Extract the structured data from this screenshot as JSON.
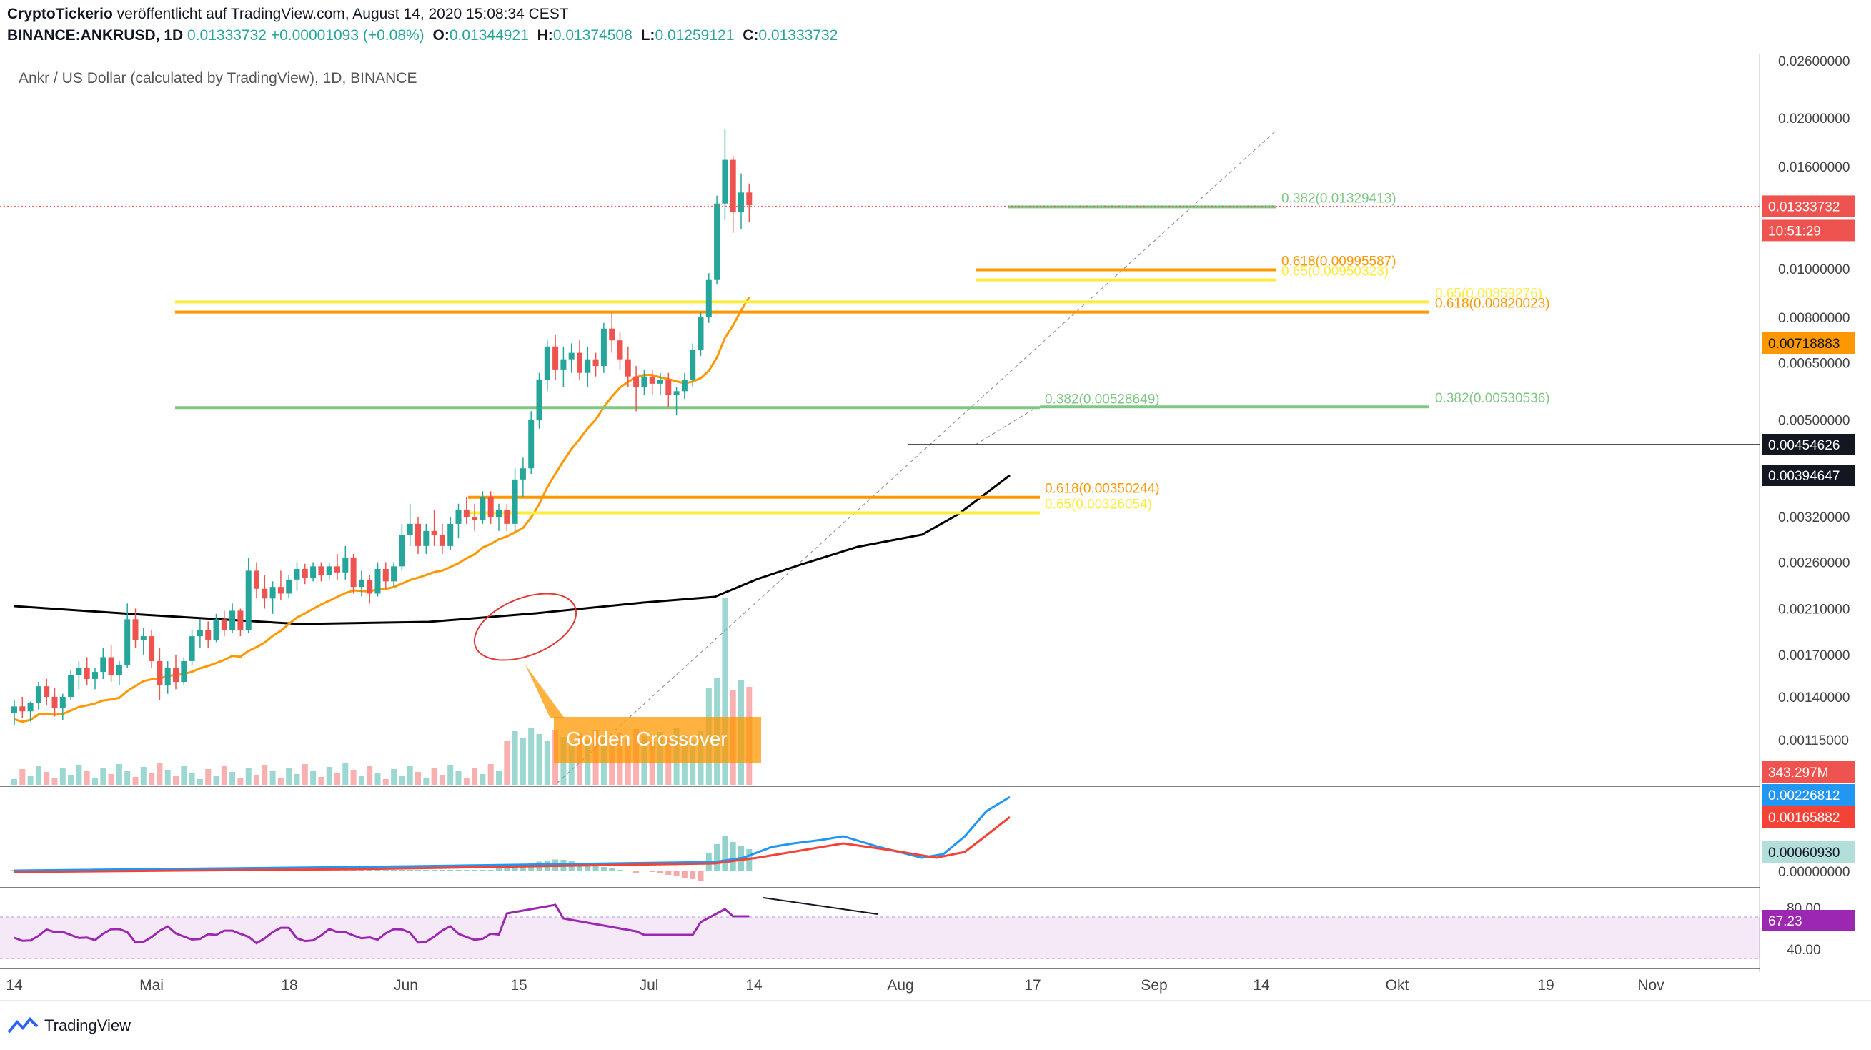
{
  "header": {
    "author": "CryptoTickerio",
    "published": "veröffentlicht auf TradingView.com, August 14, 2020 15:08:34 CEST",
    "symbol": "BINANCE:ANKRUSD, 1D",
    "last": "0.01333732",
    "change": "+0.00001093 (+0.08%)",
    "o_label": "O:",
    "o": "0.01344921",
    "h_label": "H:",
    "h": "0.01374508",
    "l_label": "L:",
    "l": "0.01259121",
    "c_label": "C:",
    "c": "0.01333732"
  },
  "footer": {
    "brand": "TradingView",
    "logo_icon": "tradingview-logo-icon"
  },
  "chart_data": {
    "type": "candlestick",
    "title": "Ankr / US Dollar (calculated by TradingView), 1D, BINANCE",
    "x_ticks": [
      "14",
      "Mai",
      "18",
      "Jun",
      "15",
      "Jul",
      "14",
      "Aug",
      "17",
      "Sep",
      "14",
      "Okt",
      "19",
      "Nov"
    ],
    "price_ticks": [
      0.026,
      0.02,
      0.016,
      0.01,
      0.008,
      0.0065,
      0.005,
      0.0032,
      0.0026,
      0.0021,
      0.0017,
      0.0014,
      0.00115
    ],
    "price_tick_labels": [
      "0.02600000",
      "0.02000000",
      "0.01600000",
      "0.01000000",
      "0.00800000",
      "0.00650000",
      "0.00500000",
      "0.00320000",
      "0.00260000",
      "0.00210000",
      "0.00170000",
      "0.00140000",
      "0.00115000"
    ],
    "price_scale": "log",
    "candles_approx": [
      [
        0.0013,
        0.00138,
        0.00123,
        0.00134
      ],
      [
        0.00134,
        0.0014,
        0.00127,
        0.00131
      ],
      [
        0.00131,
        0.00137,
        0.00125,
        0.00136
      ],
      [
        0.00136,
        0.0015,
        0.00132,
        0.00147
      ],
      [
        0.00147,
        0.00152,
        0.00135,
        0.0014
      ],
      [
        0.0014,
        0.00146,
        0.00128,
        0.00133
      ],
      [
        0.00133,
        0.00142,
        0.00126,
        0.0014
      ],
      [
        0.0014,
        0.00158,
        0.00138,
        0.00155
      ],
      [
        0.00155,
        0.00165,
        0.00145,
        0.0016
      ],
      [
        0.0016,
        0.00168,
        0.00148,
        0.00152
      ],
      [
        0.00152,
        0.0016,
        0.00145,
        0.00157
      ],
      [
        0.00157,
        0.00175,
        0.00152,
        0.00168
      ],
      [
        0.00168,
        0.00178,
        0.0015,
        0.00155
      ],
      [
        0.00155,
        0.00165,
        0.00148,
        0.00162
      ],
      [
        0.00162,
        0.00215,
        0.0016,
        0.002
      ],
      [
        0.002,
        0.0021,
        0.00175,
        0.00182
      ],
      [
        0.00182,
        0.00192,
        0.0017,
        0.00185
      ],
      [
        0.00185,
        0.0019,
        0.0016,
        0.00165
      ],
      [
        0.00165,
        0.00175,
        0.00138,
        0.00148
      ],
      [
        0.00148,
        0.00165,
        0.00142,
        0.0016
      ],
      [
        0.0016,
        0.0017,
        0.00145,
        0.0015
      ],
      [
        0.0015,
        0.00168,
        0.00148,
        0.00165
      ],
      [
        0.00165,
        0.0019,
        0.00162,
        0.00185
      ],
      [
        0.00185,
        0.002,
        0.00175,
        0.0019
      ],
      [
        0.0019,
        0.00198,
        0.00175,
        0.00182
      ],
      [
        0.00182,
        0.00205,
        0.0018,
        0.002
      ],
      [
        0.002,
        0.00208,
        0.00185,
        0.0019
      ],
      [
        0.0019,
        0.00215,
        0.00188,
        0.00208
      ],
      [
        0.00208,
        0.0021,
        0.00185,
        0.0019
      ],
      [
        0.0019,
        0.00265,
        0.00188,
        0.0025
      ],
      [
        0.0025,
        0.0026,
        0.0022,
        0.0023
      ],
      [
        0.0023,
        0.00245,
        0.0021,
        0.0022
      ],
      [
        0.0022,
        0.00238,
        0.00205,
        0.00232
      ],
      [
        0.00232,
        0.0025,
        0.00218,
        0.00225
      ],
      [
        0.00225,
        0.00245,
        0.0022,
        0.0024
      ],
      [
        0.0024,
        0.0026,
        0.00228,
        0.00252
      ],
      [
        0.00252,
        0.00258,
        0.00235,
        0.00242
      ],
      [
        0.00242,
        0.0026,
        0.00238,
        0.00255
      ],
      [
        0.00255,
        0.0026,
        0.00238,
        0.00245
      ],
      [
        0.00245,
        0.0026,
        0.0024,
        0.00255
      ],
      [
        0.00255,
        0.0027,
        0.0024,
        0.00248
      ],
      [
        0.00248,
        0.0028,
        0.0024,
        0.00265
      ],
      [
        0.00265,
        0.0027,
        0.00225,
        0.00232
      ],
      [
        0.00232,
        0.0025,
        0.00222,
        0.0024
      ],
      [
        0.0024,
        0.00245,
        0.00215,
        0.00225
      ],
      [
        0.00225,
        0.0026,
        0.00222,
        0.00252
      ],
      [
        0.00252,
        0.0026,
        0.0023,
        0.00238
      ],
      [
        0.00238,
        0.0026,
        0.00232,
        0.00255
      ],
      [
        0.00255,
        0.0031,
        0.0025,
        0.00295
      ],
      [
        0.00295,
        0.0034,
        0.0028,
        0.0031
      ],
      [
        0.0031,
        0.0032,
        0.0027,
        0.0028
      ],
      [
        0.0028,
        0.0031,
        0.0027,
        0.003
      ],
      [
        0.003,
        0.0033,
        0.0028,
        0.00295
      ],
      [
        0.00295,
        0.0031,
        0.0027,
        0.0028
      ],
      [
        0.0028,
        0.0032,
        0.00275,
        0.0031
      ],
      [
        0.0031,
        0.0034,
        0.0029,
        0.0033
      ],
      [
        0.0033,
        0.0035,
        0.0031,
        0.0032
      ],
      [
        0.0032,
        0.0034,
        0.003,
        0.00315
      ],
      [
        0.00315,
        0.0036,
        0.0031,
        0.0035
      ],
      [
        0.0035,
        0.0036,
        0.0031,
        0.0032
      ],
      [
        0.0032,
        0.0034,
        0.003,
        0.0033
      ],
      [
        0.0033,
        0.0034,
        0.003,
        0.0031
      ],
      [
        0.0031,
        0.004,
        0.003,
        0.0038
      ],
      [
        0.0038,
        0.0042,
        0.0035,
        0.004
      ],
      [
        0.004,
        0.0052,
        0.0039,
        0.005
      ],
      [
        0.005,
        0.0062,
        0.0048,
        0.006
      ],
      [
        0.006,
        0.0072,
        0.0057,
        0.007
      ],
      [
        0.007,
        0.0074,
        0.006,
        0.0063
      ],
      [
        0.0063,
        0.007,
        0.0058,
        0.0066
      ],
      [
        0.0066,
        0.0071,
        0.0062,
        0.0068
      ],
      [
        0.0068,
        0.0072,
        0.006,
        0.0062
      ],
      [
        0.0062,
        0.007,
        0.0058,
        0.0066
      ],
      [
        0.0066,
        0.0068,
        0.0061,
        0.0064
      ],
      [
        0.0064,
        0.0078,
        0.0062,
        0.0076
      ],
      [
        0.0076,
        0.0082,
        0.0068,
        0.0072
      ],
      [
        0.0072,
        0.0075,
        0.0063,
        0.0066
      ],
      [
        0.0066,
        0.007,
        0.0058,
        0.0061
      ],
      [
        0.0061,
        0.0064,
        0.0052,
        0.0058
      ],
      [
        0.0058,
        0.0063,
        0.0056,
        0.0061
      ],
      [
        0.0061,
        0.0063,
        0.0056,
        0.0059
      ],
      [
        0.0059,
        0.0062,
        0.0056,
        0.006
      ],
      [
        0.006,
        0.0062,
        0.0053,
        0.0056
      ],
      [
        0.0056,
        0.0058,
        0.0051,
        0.0057
      ],
      [
        0.0057,
        0.0062,
        0.0055,
        0.006
      ],
      [
        0.006,
        0.0071,
        0.0058,
        0.0069
      ],
      [
        0.0069,
        0.0082,
        0.0067,
        0.008
      ],
      [
        0.008,
        0.0098,
        0.0078,
        0.0095
      ],
      [
        0.0095,
        0.014,
        0.0093,
        0.0135
      ],
      [
        0.0135,
        0.019,
        0.0125,
        0.0165
      ],
      [
        0.0165,
        0.0168,
        0.0118,
        0.013
      ],
      [
        0.013,
        0.0155,
        0.012,
        0.0142
      ],
      [
        0.0142,
        0.0148,
        0.0124,
        0.0134
      ]
    ],
    "ma_50_label": "0.00718883",
    "ma_200_label": "0.00394647",
    "line_label": "0.00454626",
    "last_price_label": "0.01333732",
    "countdown_label": "10:51:29",
    "volume_label": "343.297M",
    "fib_levels": [
      {
        "text": "0.382(0.01329413)",
        "value": 0.01329413,
        "color": "#81c784"
      },
      {
        "text": "0.618(0.00995587)",
        "value": 0.00995587,
        "color": "#ff9800"
      },
      {
        "text": "0.65(0.00950323)",
        "value": 0.00950323,
        "color": "#ffeb3b"
      },
      {
        "text": "0.65(0.00859276)",
        "value": 0.00859276,
        "color": "#ffeb3b"
      },
      {
        "text": "0.618(0.00820023)",
        "value": 0.00820023,
        "color": "#ff9800"
      },
      {
        "text": "0.382(0.00528649)",
        "value": 0.00528649,
        "color": "#81c784"
      },
      {
        "text": "0.382(0.00530536)",
        "value": 0.00530536,
        "color": "#81c784"
      },
      {
        "text": "0.618(0.00350244)",
        "value": 0.00350244,
        "color": "#ff9800"
      },
      {
        "text": "0.65(0.00326054)",
        "value": 0.00326054,
        "color": "#ffeb3b"
      }
    ],
    "annotation": "Golden Crossover",
    "macd": {
      "labels": [
        "0.00226812",
        "0.00165882",
        "0.00060930",
        "0.00000000"
      ],
      "colors": {
        "macd": "#2196f3",
        "signal": "#f44336"
      }
    },
    "rsi": {
      "ticks": [
        "80.00",
        "40.00"
      ],
      "value_label": "67.23",
      "color": "#9c27b0"
    },
    "colors": {
      "up": "#26a69a",
      "down": "#ef5350",
      "ma50": "#ff9800",
      "ma200": "#000000"
    }
  }
}
